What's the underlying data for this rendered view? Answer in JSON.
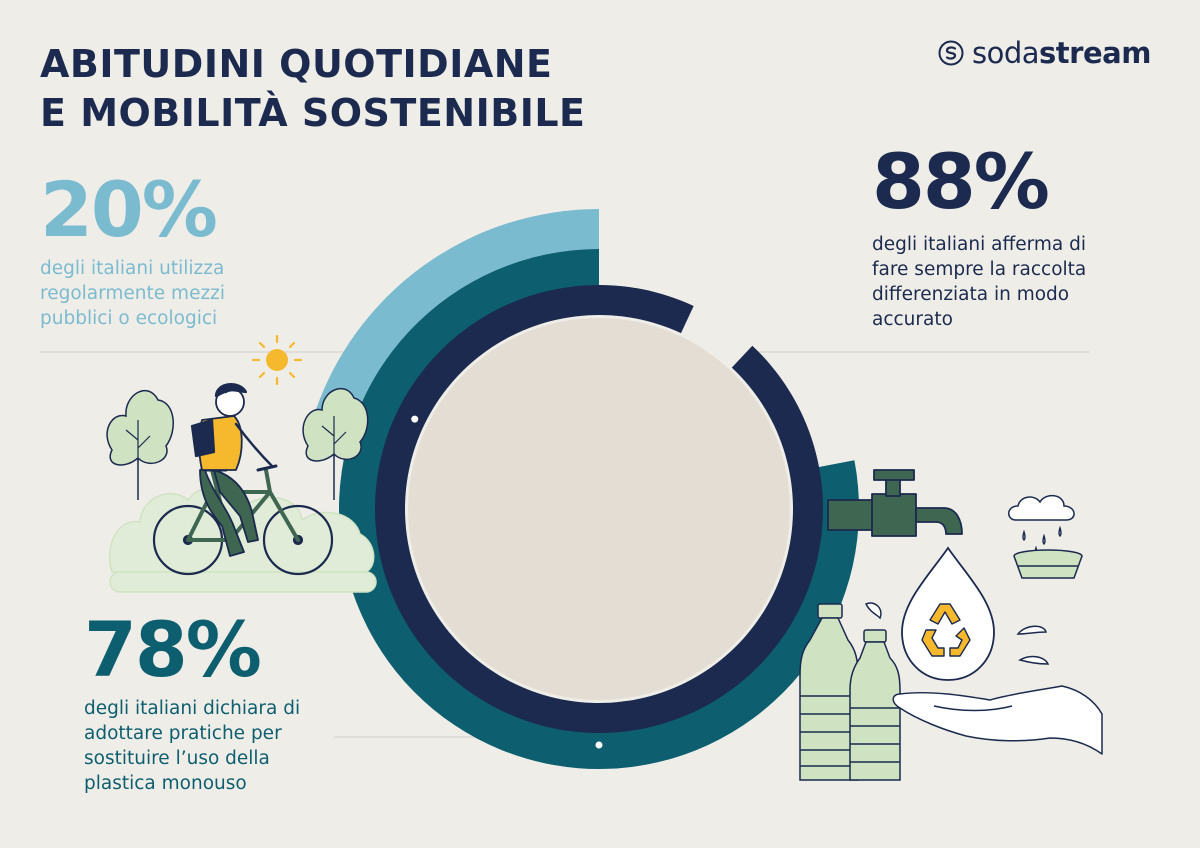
{
  "title": {
    "line1": "ABITUDINI QUOTIDIANE",
    "line2": "E MOBILITÀ SOSTENIBILE"
  },
  "logo": {
    "part1": "soda",
    "part2": "stream",
    "icon": "sodastream-logo-icon"
  },
  "stats": {
    "public_transport": {
      "value": "20%",
      "description": "degli italiani utilizza regolarmente mezzi pubblici o ecologici"
    },
    "recycling": {
      "value": "88%",
      "description": "degli italiani afferma di fare sempre la raccolta differenziata in modo accurato"
    },
    "plastic": {
      "value": "78%",
      "description": "degli italiani dichiara di adottare pratiche per sostituire l’uso della plastica monouso"
    }
  },
  "colors": {
    "background": "#efede8",
    "navy": "#1b2a4e",
    "teal": "#0d5e6f",
    "light_blue": "#7bbbd0",
    "inner_disc": "#e4ddd4",
    "light_green": "#cfe3c2",
    "dark_green": "#3f6650"
  },
  "chart_data": {
    "type": "radial-bar",
    "categories": [
      "degli italiani utilizza regolarmente mezzi pubblici o ecologici",
      "degli italiani dichiara di adottare pratiche per sostituire l’uso della plastica monouso",
      "degli italiani afferma di fare sempre la raccolta differenziata in modo accurato"
    ],
    "values": [
      20,
      78,
      88
    ],
    "unit": "%",
    "max": 100,
    "colors": [
      "#7bbbd0",
      "#0d5e6f",
      "#1b2a4e"
    ],
    "title": "ABITUDINI QUOTIDIANE E MOBILITÀ SOSTENIBILE"
  },
  "illustrations": [
    "cyclist-illustration",
    "sun-icon",
    "tree-icon",
    "bush-icon",
    "water-tap-icon",
    "rain-cloud-icon",
    "bowl-icon",
    "recycle-icon",
    "water-drop-icon",
    "bottle-icon",
    "hand-icon"
  ]
}
